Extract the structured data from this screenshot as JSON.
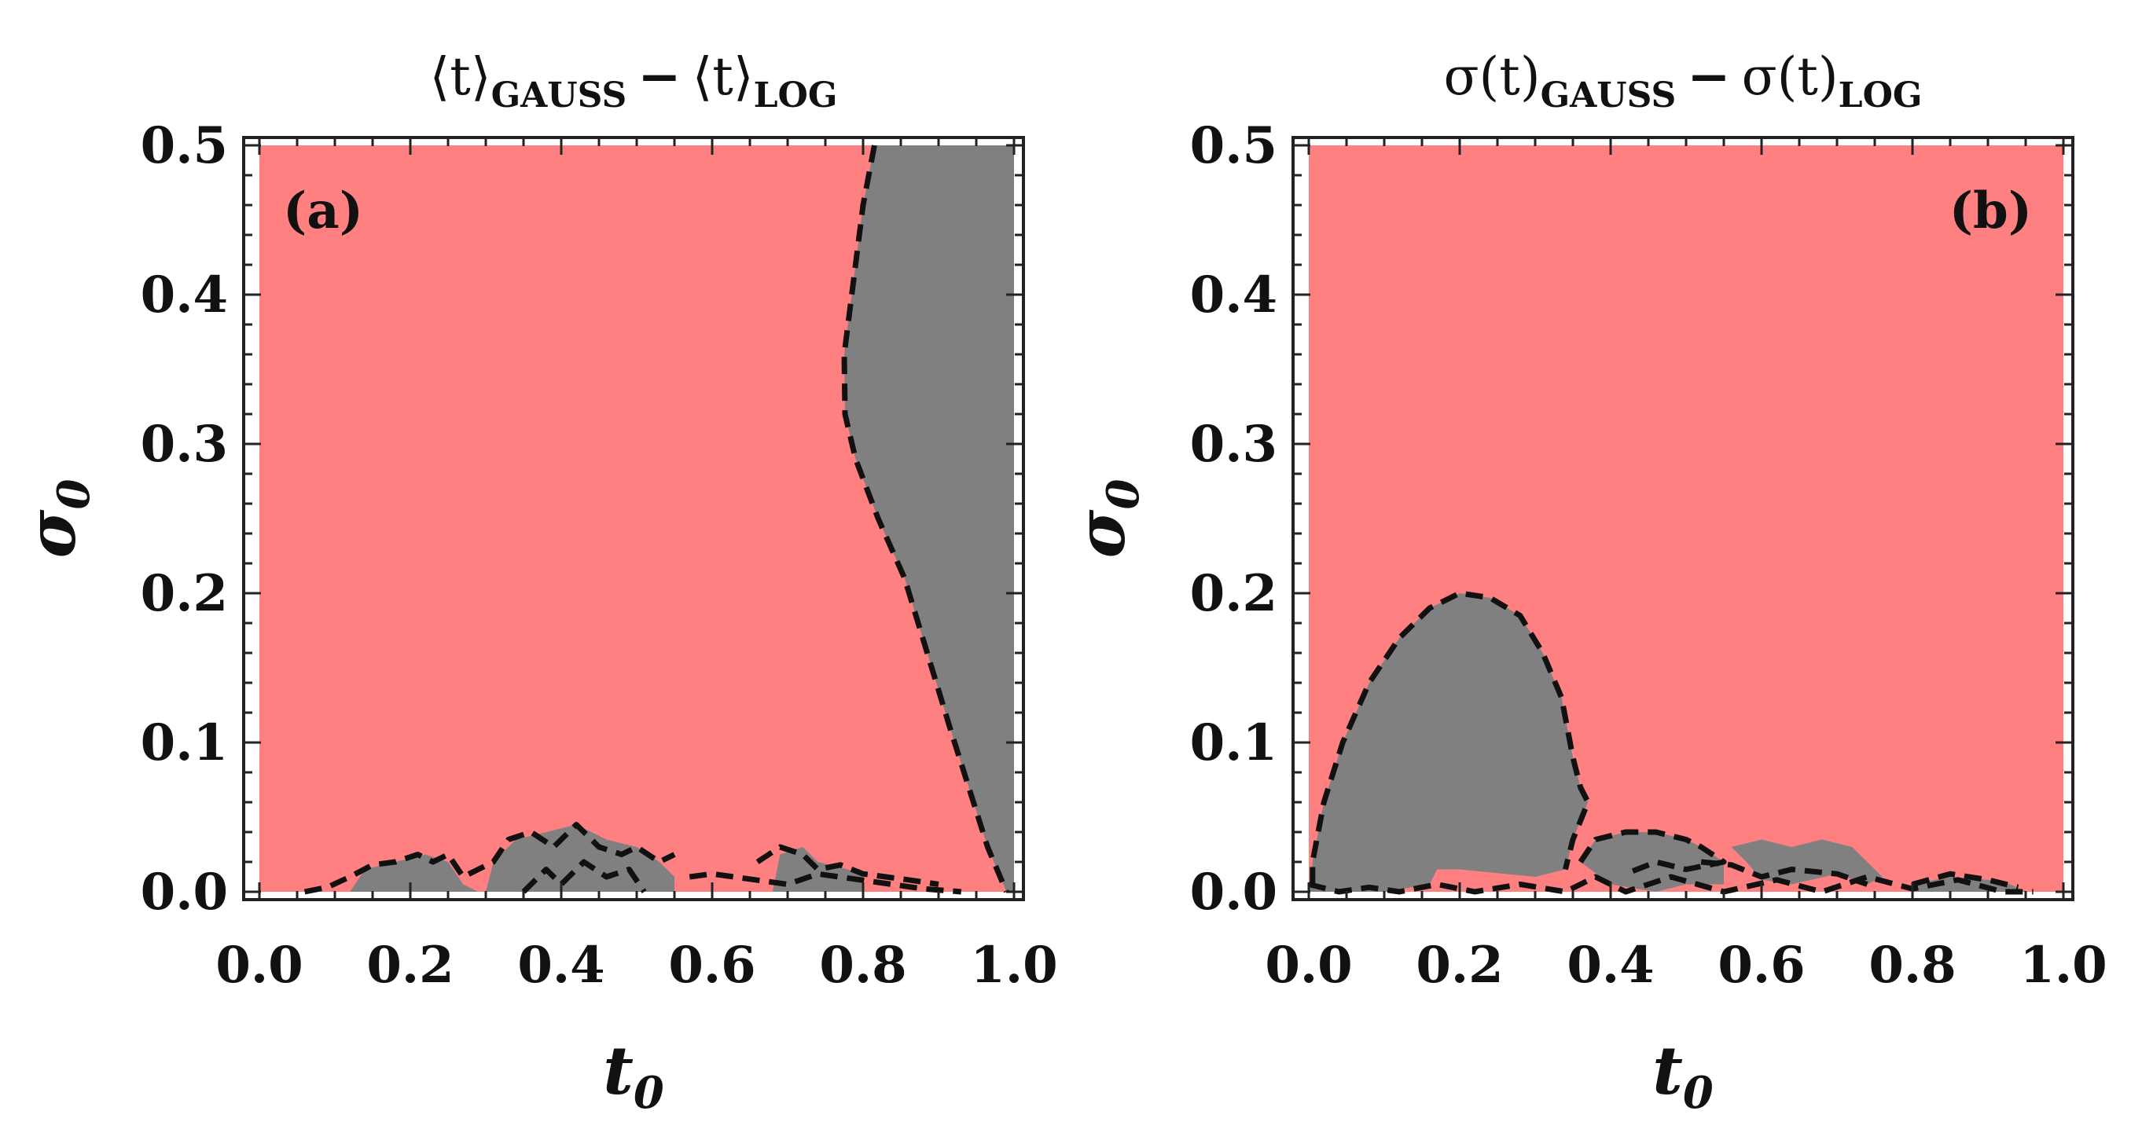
{
  "chart_data": [
    {
      "type": "region",
      "panel_label": "(a)",
      "title": {
        "term1": "⟨t⟩",
        "term1_sub": "GAUSS",
        "operator": "−",
        "term2": "⟨t⟩",
        "term2_sub": "LOG"
      },
      "xlabel": "t",
      "xlabel_sub": "0",
      "ylabel": "σ",
      "ylabel_sub": "0",
      "xlim": [
        0,
        1
      ],
      "ylim": [
        0,
        0.5
      ],
      "xticks": [
        "0.0",
        "0.2",
        "0.4",
        "0.6",
        "0.8",
        "1.0"
      ],
      "yticks": [
        "0.0",
        "0.1",
        "0.2",
        "0.3",
        "0.4",
        "0.5"
      ],
      "colors": {
        "positive": "#FF8080",
        "negative": "#808080",
        "contour": "#111111"
      },
      "regions": [
        {
          "name": "negative-region-right",
          "points": [
            [
              0.815,
              0.5
            ],
            [
              0.8,
              0.46
            ],
            [
              0.785,
              0.4
            ],
            [
              0.775,
              0.36
            ],
            [
              0.776,
              0.32
            ],
            [
              0.79,
              0.29
            ],
            [
              0.82,
              0.25
            ],
            [
              0.855,
              0.21
            ],
            [
              0.885,
              0.16
            ],
            [
              0.915,
              0.11
            ],
            [
              0.94,
              0.07
            ],
            [
              0.965,
              0.03
            ],
            [
              0.99,
              0.0
            ],
            [
              1.0,
              0.0
            ],
            [
              1.0,
              0.5
            ]
          ]
        },
        {
          "name": "negative-noise-1",
          "points": [
            [
              0.12,
              0.0
            ],
            [
              0.14,
              0.015
            ],
            [
              0.18,
              0.02
            ],
            [
              0.22,
              0.025
            ],
            [
              0.25,
              0.02
            ],
            [
              0.27,
              0.005
            ],
            [
              0.29,
              0.0
            ]
          ]
        },
        {
          "name": "negative-noise-2",
          "points": [
            [
              0.3,
              0.0
            ],
            [
              0.31,
              0.02
            ],
            [
              0.34,
              0.035
            ],
            [
              0.38,
              0.04
            ],
            [
              0.42,
              0.045
            ],
            [
              0.46,
              0.035
            ],
            [
              0.5,
              0.03
            ],
            [
              0.53,
              0.02
            ],
            [
              0.55,
              0.01
            ],
            [
              0.55,
              0.0
            ]
          ]
        },
        {
          "name": "negative-noise-3",
          "points": [
            [
              0.68,
              0.0
            ],
            [
              0.69,
              0.025
            ],
            [
              0.72,
              0.03
            ],
            [
              0.74,
              0.02
            ],
            [
              0.78,
              0.015
            ],
            [
              0.8,
              0.01
            ],
            [
              0.8,
              0.0
            ]
          ]
        }
      ],
      "contours": [
        {
          "name": "contour-main",
          "points": [
            [
              0.815,
              0.5
            ],
            [
              0.8,
              0.46
            ],
            [
              0.785,
              0.4
            ],
            [
              0.775,
              0.36
            ],
            [
              0.776,
              0.32
            ],
            [
              0.79,
              0.29
            ],
            [
              0.82,
              0.25
            ],
            [
              0.855,
              0.21
            ],
            [
              0.885,
              0.16
            ],
            [
              0.915,
              0.11
            ],
            [
              0.94,
              0.07
            ],
            [
              0.965,
              0.03
            ],
            [
              0.99,
              0.0
            ]
          ]
        },
        {
          "name": "contour-noise-1",
          "points": [
            [
              0.06,
              0.0
            ],
            [
              0.09,
              0.003
            ],
            [
              0.12,
              0.01
            ],
            [
              0.15,
              0.018
            ],
            [
              0.18,
              0.02
            ],
            [
              0.21,
              0.025
            ],
            [
              0.23,
              0.02
            ],
            [
              0.25,
              0.025
            ],
            [
              0.27,
              0.01
            ],
            [
              0.29,
              0.015
            ],
            [
              0.31,
              0.02
            ],
            [
              0.33,
              0.035
            ],
            [
              0.36,
              0.04
            ],
            [
              0.39,
              0.03
            ],
            [
              0.42,
              0.045
            ],
            [
              0.45,
              0.03
            ],
            [
              0.48,
              0.025
            ],
            [
              0.5,
              0.03
            ],
            [
              0.53,
              0.02
            ],
            [
              0.55,
              0.025
            ]
          ]
        },
        {
          "name": "contour-noise-2",
          "points": [
            [
              0.35,
              0.0
            ],
            [
              0.38,
              0.015
            ],
            [
              0.4,
              0.005
            ],
            [
              0.43,
              0.02
            ],
            [
              0.46,
              0.01
            ],
            [
              0.49,
              0.015
            ],
            [
              0.51,
              0.0
            ]
          ]
        },
        {
          "name": "contour-noise-3",
          "points": [
            [
              0.66,
              0.02
            ],
            [
              0.69,
              0.03
            ],
            [
              0.72,
              0.025
            ],
            [
              0.74,
              0.015
            ],
            [
              0.77,
              0.018
            ],
            [
              0.8,
              0.012
            ],
            [
              0.83,
              0.01
            ],
            [
              0.86,
              0.008
            ],
            [
              0.9,
              0.005
            ]
          ]
        },
        {
          "name": "contour-noise-4",
          "points": [
            [
              0.57,
              0.01
            ],
            [
              0.6,
              0.012
            ],
            [
              0.7,
              0.005
            ],
            [
              0.74,
              0.012
            ],
            [
              0.88,
              0.002
            ],
            [
              0.93,
              0.0
            ]
          ]
        }
      ]
    },
    {
      "type": "region",
      "panel_label": "(b)",
      "title": {
        "term1": "σ(t)",
        "term1_sub": "GAUSS",
        "operator": "−",
        "term2": "σ(t)",
        "term2_sub": "LOG"
      },
      "xlabel": "t",
      "xlabel_sub": "0",
      "ylabel": "σ",
      "ylabel_sub": "0",
      "xlim": [
        0,
        1
      ],
      "ylim": [
        0,
        0.5
      ],
      "xticks": [
        "0.0",
        "0.2",
        "0.4",
        "0.6",
        "0.8",
        "1.0"
      ],
      "yticks": [
        "0.0",
        "0.1",
        "0.2",
        "0.3",
        "0.4",
        "0.5"
      ],
      "colors": {
        "positive": "#FF8080",
        "negative": "#808080",
        "contour": "#111111"
      },
      "regions": [
        {
          "name": "negative-lobe",
          "points": [
            [
              0.0,
              0.0
            ],
            [
              0.005,
              0.02
            ],
            [
              0.02,
              0.06
            ],
            [
              0.045,
              0.1
            ],
            [
              0.08,
              0.14
            ],
            [
              0.12,
              0.17
            ],
            [
              0.16,
              0.19
            ],
            [
              0.2,
              0.2
            ],
            [
              0.24,
              0.197
            ],
            [
              0.28,
              0.185
            ],
            [
              0.31,
              0.16
            ],
            [
              0.335,
              0.13
            ],
            [
              0.35,
              0.09
            ],
            [
              0.36,
              0.07
            ],
            [
              0.37,
              0.06
            ],
            [
              0.35,
              0.035
            ],
            [
              0.34,
              0.015
            ],
            [
              0.3,
              0.01
            ],
            [
              0.2,
              0.015
            ],
            [
              0.17,
              0.015
            ],
            [
              0.16,
              0.005
            ],
            [
              0.1,
              0.0
            ]
          ]
        },
        {
          "name": "negative-band-1",
          "points": [
            [
              0.36,
              0.02
            ],
            [
              0.38,
              0.035
            ],
            [
              0.42,
              0.04
            ],
            [
              0.46,
              0.04
            ],
            [
              0.5,
              0.035
            ],
            [
              0.52,
              0.03
            ],
            [
              0.55,
              0.02
            ],
            [
              0.55,
              0.005
            ],
            [
              0.5,
              0.005
            ],
            [
              0.46,
              0.0
            ],
            [
              0.4,
              0.005
            ]
          ]
        },
        {
          "name": "negative-band-2",
          "points": [
            [
              0.56,
              0.03
            ],
            [
              0.6,
              0.035
            ],
            [
              0.64,
              0.03
            ],
            [
              0.68,
              0.035
            ],
            [
              0.72,
              0.03
            ],
            [
              0.74,
              0.02
            ],
            [
              0.76,
              0.01
            ],
            [
              0.74,
              0.005
            ],
            [
              0.7,
              0.012
            ],
            [
              0.64,
              0.005
            ],
            [
              0.6,
              0.008
            ],
            [
              0.58,
              0.02
            ]
          ]
        },
        {
          "name": "negative-band-3",
          "points": [
            [
              0.8,
              0.005
            ],
            [
              0.85,
              0.01
            ],
            [
              0.9,
              0.008
            ],
            [
              0.93,
              0.005
            ],
            [
              0.95,
              0.0
            ],
            [
              0.8,
              0.0
            ]
          ]
        }
      ],
      "contours": [
        {
          "name": "contour-lobe",
          "points": [
            [
              0.005,
              0.005
            ],
            [
              0.005,
              0.02
            ],
            [
              0.02,
              0.06
            ],
            [
              0.045,
              0.1
            ],
            [
              0.08,
              0.14
            ],
            [
              0.12,
              0.17
            ],
            [
              0.16,
              0.19
            ],
            [
              0.2,
              0.2
            ],
            [
              0.24,
              0.197
            ],
            [
              0.28,
              0.185
            ],
            [
              0.31,
              0.16
            ],
            [
              0.335,
              0.13
            ],
            [
              0.35,
              0.09
            ],
            [
              0.36,
              0.07
            ],
            [
              0.37,
              0.06
            ],
            [
              0.35,
              0.035
            ],
            [
              0.34,
              0.015
            ]
          ]
        },
        {
          "name": "contour-bottom",
          "points": [
            [
              0.0,
              0.005
            ],
            [
              0.04,
              0.0
            ],
            [
              0.08,
              0.003
            ],
            [
              0.12,
              0.0
            ],
            [
              0.17,
              0.005
            ],
            [
              0.22,
              0.0
            ],
            [
              0.28,
              0.005
            ],
            [
              0.34,
              0.0
            ],
            [
              0.38,
              0.01
            ],
            [
              0.42,
              0.0
            ],
            [
              0.48,
              0.01
            ],
            [
              0.55,
              0.0
            ],
            [
              0.62,
              0.008
            ],
            [
              0.68,
              0.0
            ],
            [
              0.74,
              0.01
            ],
            [
              0.8,
              0.002
            ],
            [
              0.86,
              0.008
            ],
            [
              0.92,
              0.0
            ],
            [
              0.96,
              0.0
            ]
          ]
        },
        {
          "name": "contour-band",
          "points": [
            [
              0.36,
              0.02
            ],
            [
              0.38,
              0.035
            ],
            [
              0.42,
              0.04
            ],
            [
              0.46,
              0.04
            ],
            [
              0.5,
              0.035
            ],
            [
              0.52,
              0.03
            ],
            [
              0.55,
              0.02
            ],
            [
              0.5,
              0.015
            ],
            [
              0.46,
              0.02
            ],
            [
              0.42,
              0.012
            ]
          ]
        },
        {
          "name": "contour-band-2",
          "points": [
            [
              0.52,
              0.02
            ],
            [
              0.56,
              0.018
            ],
            [
              0.6,
              0.01
            ],
            [
              0.64,
              0.015
            ],
            [
              0.7,
              0.012
            ],
            [
              0.74,
              0.005
            ]
          ]
        },
        {
          "name": "contour-band-3",
          "points": [
            [
              0.8,
              0.005
            ],
            [
              0.85,
              0.012
            ],
            [
              0.9,
              0.008
            ],
            [
              0.94,
              0.003
            ]
          ]
        }
      ]
    }
  ]
}
